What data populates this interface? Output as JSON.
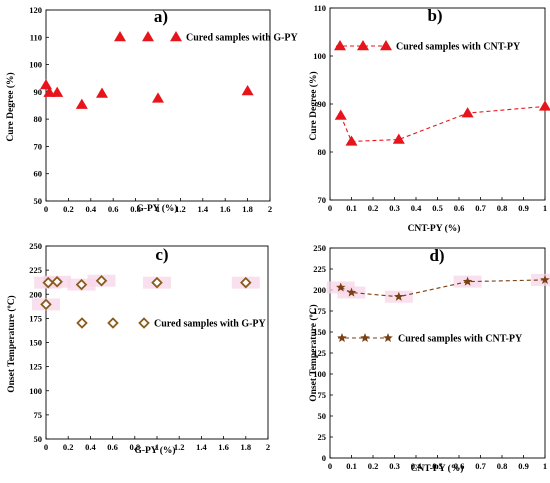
{
  "chart_data": [
    {
      "type": "scatter",
      "panel_label": "a)",
      "xlabel": "G-PY (%)",
      "ylabel": "Cure Degree (%)",
      "xlim": [
        0,
        2
      ],
      "ylim": [
        50,
        120
      ],
      "x_ticks": [
        "0",
        "0.2",
        "0.4",
        "0.6",
        "0.8",
        "1",
        "1.2",
        "1.4",
        "1.6",
        "1.8",
        "2"
      ],
      "y_ticks": [
        "50",
        "60",
        "70",
        "80",
        "90",
        "100",
        "110",
        "120"
      ],
      "legend": "top-right",
      "series": [
        {
          "name": "Cured samples with G-PY",
          "marker": "triangle",
          "color": "#e8141b",
          "points": [
            [
              0,
              92.5
            ],
            [
              0.03,
              89.7
            ],
            [
              0.1,
              89.7
            ],
            [
              0.32,
              85.3
            ],
            [
              0.5,
              89.4
            ],
            [
              1.0,
              87.6
            ],
            [
              1.8,
              90.3
            ]
          ]
        }
      ]
    },
    {
      "type": "line",
      "panel_label": "b)",
      "xlabel": "CNT-PY (%)",
      "ylabel": "Cure Degree (%)",
      "xlim": [
        0,
        1
      ],
      "ylim": [
        70,
        110
      ],
      "x_ticks": [
        "0",
        "0.1",
        "0.2",
        "0.3",
        "0.4",
        "0.5",
        "0.6",
        "0.7",
        "0.8",
        "0.9",
        "1"
      ],
      "y_ticks": [
        "70",
        "80",
        "90",
        "100",
        "110"
      ],
      "legend": "top-right",
      "series": [
        {
          "name": "Cured samples with CNT-PY",
          "marker": "triangle",
          "line": "dashed",
          "color": "#e8141b",
          "points": [
            [
              0.05,
              87.6
            ],
            [
              0.1,
              82.2
            ],
            [
              0.32,
              82.6
            ],
            [
              0.64,
              88.1
            ],
            [
              1.0,
              89.5
            ]
          ]
        }
      ]
    },
    {
      "type": "scatter",
      "panel_label": "c)",
      "xlabel": "G-PY (%)",
      "ylabel": "Onset Temperature (ºC)",
      "xlim": [
        0,
        2
      ],
      "ylim": [
        50,
        250
      ],
      "x_ticks": [
        "0",
        "0.2",
        "0.4",
        "0.6",
        "0.8",
        "1",
        "1.2",
        "1.4",
        "1.6",
        "1.8",
        "2"
      ],
      "y_ticks": [
        "50",
        "75",
        "100",
        "125",
        "150",
        "175",
        "200",
        "225",
        "250"
      ],
      "legend": "bottom-right",
      "series": [
        {
          "name": "Cured samples with G-PY",
          "marker": "diamond",
          "color": "#8b5a1a",
          "points": [
            [
              0,
              189.5
            ],
            [
              0.02,
              212.0
            ],
            [
              0.1,
              213.0
            ],
            [
              0.32,
              210.0
            ],
            [
              0.5,
              214.0
            ],
            [
              1.0,
              212.0
            ],
            [
              1.8,
              212.0
            ]
          ]
        }
      ]
    },
    {
      "type": "line",
      "panel_label": "d)",
      "xlabel": "CNT-PY (%)",
      "ylabel": "Onset Temperature (ºC)",
      "xlim": [
        0,
        1
      ],
      "ylim": [
        0,
        250
      ],
      "x_ticks": [
        "0",
        "0.1",
        "0.2",
        "0.3",
        "0.4",
        "0.5",
        "0.6",
        "0.7",
        "0.8",
        "0.9",
        "1"
      ],
      "y_ticks": [
        "0",
        "25",
        "50",
        "75",
        "100",
        "125",
        "150",
        "175",
        "200",
        "225",
        "250"
      ],
      "legend": "center-right",
      "series": [
        {
          "name": "Cured samples with CNT-PY",
          "marker": "star",
          "line": "dashed",
          "color": "#7a3f12",
          "points": [
            [
              0.05,
              203.0
            ],
            [
              0.1,
              197.0
            ],
            [
              0.32,
              192.0
            ],
            [
              0.64,
              210.0
            ],
            [
              1.0,
              212.0
            ]
          ]
        }
      ]
    }
  ]
}
